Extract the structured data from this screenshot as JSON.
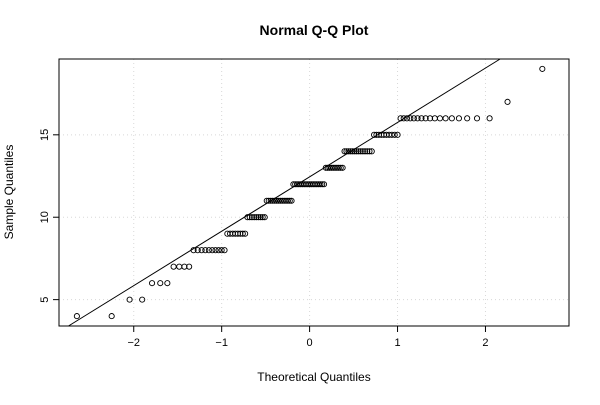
{
  "chart_data": {
    "type": "scatter",
    "title": "Normal Q-Q Plot",
    "xlabel": "Theoretical Quantiles",
    "ylabel": "Sample Quantiles",
    "xlim": [
      -2.85,
      2.95
    ],
    "ylim": [
      3.4,
      19.6
    ],
    "x_ticks": [
      -2,
      -1,
      0,
      1,
      2
    ],
    "y_ticks": [
      5,
      10,
      15
    ],
    "grid": true,
    "reference_line": {
      "intercept": 12.45,
      "slope": 3.3
    },
    "counts_by_value": [
      {
        "y": 4,
        "n": 2
      },
      {
        "y": 5,
        "n": 2
      },
      {
        "y": 6,
        "n": 3
      },
      {
        "y": 7,
        "n": 4
      },
      {
        "y": 8,
        "n": 10
      },
      {
        "y": 9,
        "n": 8
      },
      {
        "y": 10,
        "n": 9
      },
      {
        "y": 11,
        "n": 14
      },
      {
        "y": 12,
        "n": 18
      },
      {
        "y": 13,
        "n": 10
      },
      {
        "y": 14,
        "n": 14
      },
      {
        "y": 15,
        "n": 10
      },
      {
        "y": 16,
        "n": 17
      },
      {
        "y": 17,
        "n": 1
      },
      {
        "y": 19,
        "n": 1
      }
    ]
  }
}
